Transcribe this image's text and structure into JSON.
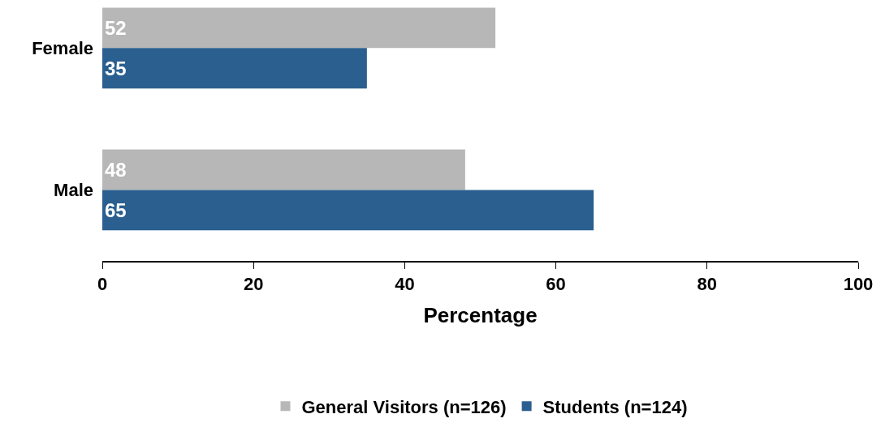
{
  "chart_data": {
    "type": "bar",
    "orientation": "horizontal",
    "categories": [
      "Female",
      "Male"
    ],
    "series": [
      {
        "name": "General Visitors (n=126)",
        "color": "#b7b7b7",
        "values": [
          52,
          48
        ]
      },
      {
        "name": "Students (n=124)",
        "color": "#2a5f8f",
        "values": [
          35,
          65
        ]
      }
    ],
    "xlabel": "Percentage",
    "xlim": [
      0,
      100
    ],
    "xticks": [
      0,
      20,
      40,
      60,
      80,
      100
    ],
    "data_labels": true,
    "legend": "bottom"
  }
}
